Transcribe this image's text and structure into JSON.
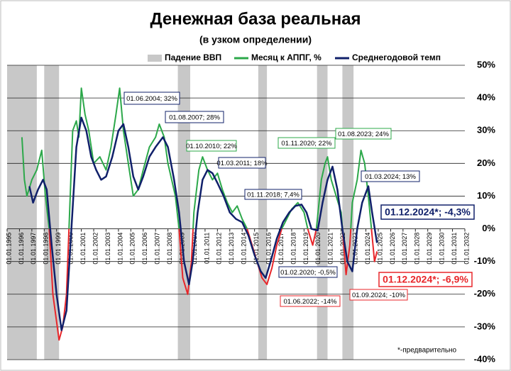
{
  "chart_data": {
    "type": "line",
    "title": "Денежная база реальная",
    "subtitle": "(в узком определении)",
    "footnote": "*-предварительно",
    "xlim": [
      1995,
      2032
    ],
    "ylim": [
      -40,
      50
    ],
    "yticks": [
      {
        "value": 50,
        "label": "50%"
      },
      {
        "value": 40,
        "label": "40%"
      },
      {
        "value": 30,
        "label": "30%"
      },
      {
        "value": 20,
        "label": "20%"
      },
      {
        "value": 10,
        "label": "10%"
      },
      {
        "value": 0,
        "label": "0%"
      },
      {
        "value": -10,
        "label": "-10%"
      },
      {
        "value": -20,
        "label": "-20%"
      },
      {
        "value": -30,
        "label": "-30%"
      },
      {
        "value": -40,
        "label": "-40%"
      }
    ],
    "xticks": [
      {
        "value": 1995,
        "label": "01.01.1995"
      },
      {
        "value": 1996,
        "label": "01.01.1996"
      },
      {
        "value": 1997,
        "label": "01.01.1997"
      },
      {
        "value": 1998,
        "label": "01.01.1998"
      },
      {
        "value": 1999,
        "label": "01.01.1999"
      },
      {
        "value": 2000,
        "label": "01.01.2000"
      },
      {
        "value": 2001,
        "label": "01.01.2001"
      },
      {
        "value": 2002,
        "label": "01.01.2002"
      },
      {
        "value": 2003,
        "label": "01.01.2003"
      },
      {
        "value": 2004,
        "label": "01.01.2004"
      },
      {
        "value": 2005,
        "label": "01.01.2005"
      },
      {
        "value": 2006,
        "label": "01.01.2006"
      },
      {
        "value": 2007,
        "label": "01.01.2007"
      },
      {
        "value": 2008,
        "label": "01.01.2008"
      },
      {
        "value": 2009,
        "label": "01.01.2009"
      },
      {
        "value": 2010,
        "label": "01.01.2010"
      },
      {
        "value": 2011,
        "label": "01.01.2011"
      },
      {
        "value": 2012,
        "label": "01.01.2012"
      },
      {
        "value": 2013,
        "label": "01.01.2013"
      },
      {
        "value": 2014,
        "label": "01.01.2014"
      },
      {
        "value": 2015,
        "label": "01.01.2015"
      },
      {
        "value": 2016,
        "label": "01.01.2016"
      },
      {
        "value": 2017,
        "label": "01.01.2017"
      },
      {
        "value": 2018,
        "label": "01.01.2018"
      },
      {
        "value": 2019,
        "label": "01.01.2019"
      },
      {
        "value": 2020,
        "label": "01.01.2020"
      },
      {
        "value": 2021,
        "label": "01.01.2021"
      },
      {
        "value": 2022,
        "label": "01.01.2022"
      },
      {
        "value": 2023,
        "label": "01.01.2023"
      },
      {
        "value": 2024,
        "label": "01.01.2024"
      },
      {
        "value": 2025,
        "label": "01.01.2025"
      },
      {
        "value": 2026,
        "label": "01.01.2026"
      },
      {
        "value": 2027,
        "label": "01.01.2027"
      },
      {
        "value": 2028,
        "label": "01.01.2028"
      },
      {
        "value": 2029,
        "label": "01.01.2029"
      },
      {
        "value": 2030,
        "label": "01.01.2030"
      },
      {
        "value": 2031,
        "label": "01.01.2031"
      },
      {
        "value": 2032,
        "label": "01.01.2032"
      }
    ],
    "grid": true,
    "recessions": {
      "name": "Падение ВВП",
      "color": "#c8c8c8",
      "periods": [
        [
          1995,
          1997.4
        ],
        [
          1998,
          1999.2
        ],
        [
          2008.8,
          2009.8
        ],
        [
          2015.3,
          2016
        ],
        [
          2020.05,
          2020.9
        ],
        [
          2022.1,
          2023
        ]
      ]
    },
    "series": [
      {
        "name": "Месяц к АППГ, %",
        "color": "#2ca84a",
        "negative_color": "#e8262a",
        "x": [
          1996.2,
          1996.4,
          1996.6,
          1997,
          1997.4,
          1997.8,
          1998.1,
          1998.4,
          1998.7,
          1999.2,
          1999.5,
          1999.8,
          2000,
          2000.3,
          2000.6,
          2000.8,
          2001,
          2001.3,
          2001.6,
          2002,
          2002.5,
          2003,
          2003.4,
          2003.8,
          2004.1,
          2004.4,
          2004.8,
          2005.2,
          2005.6,
          2006,
          2006.5,
          2007,
          2007.3,
          2007.7,
          2008,
          2008.3,
          2008.6,
          2008.9,
          2009.2,
          2009.6,
          2009.9,
          2010.1,
          2010.5,
          2010.8,
          2011.2,
          2011.6,
          2012,
          2012.4,
          2012.8,
          2013.2,
          2013.6,
          2014,
          2014.4,
          2014.8,
          2015.2,
          2015.6,
          2016,
          2016.4,
          2016.8,
          2017.2,
          2017.6,
          2018,
          2018.5,
          2019,
          2019.3,
          2019.7,
          2020,
          2020.4,
          2020.7,
          2020.9,
          2021.2,
          2021.6,
          2022,
          2022.4,
          2022.7,
          2022.9,
          2023.3,
          2023.6,
          2023.9,
          2024.2,
          2024.7,
          2024.9
        ],
        "values": [
          28,
          15,
          10,
          15,
          18,
          24,
          10,
          0,
          -20,
          -34,
          -30,
          -20,
          0,
          30,
          33,
          28,
          43,
          35,
          30,
          20,
          22,
          18,
          25,
          35,
          43,
          30,
          20,
          10,
          12,
          18,
          25,
          28,
          32,
          28,
          20,
          15,
          10,
          0,
          -15,
          -20,
          -10,
          5,
          18,
          22,
          18,
          15,
          17,
          12,
          8,
          5,
          7,
          3,
          0,
          -5,
          -10,
          -15,
          -17,
          -12,
          -5,
          0,
          3,
          6,
          8,
          5,
          0,
          -5,
          0,
          15,
          20,
          22,
          15,
          10,
          5,
          -14,
          -5,
          8,
          15,
          24,
          20,
          10,
          -10,
          -6.9
        ]
      },
      {
        "name": "Среднегодовой темп",
        "color": "#10206a",
        "x": [
          1996.8,
          1997.1,
          1997.5,
          1997.9,
          1998.2,
          1998.6,
          1999,
          1999.4,
          1999.8,
          2000.2,
          2000.6,
          2001,
          2001.4,
          2001.8,
          2002.2,
          2002.6,
          2003,
          2003.5,
          2004,
          2004.4,
          2004.8,
          2005.2,
          2005.6,
          2006,
          2006.5,
          2007,
          2007.6,
          2008,
          2008.5,
          2008.9,
          2009.3,
          2009.7,
          2010,
          2010.4,
          2010.8,
          2011.2,
          2011.6,
          2012,
          2012.5,
          2013,
          2013.5,
          2014,
          2014.5,
          2015,
          2015.5,
          2015.9,
          2016.3,
          2016.8,
          2017.3,
          2017.8,
          2018.3,
          2018.8,
          2019.2,
          2019.6,
          2020.1,
          2020.5,
          2020.9,
          2021.3,
          2021.7,
          2022.1,
          2022.5,
          2022.9,
          2023.3,
          2023.7,
          2024.2,
          2024.5,
          2024.9
        ],
        "values": [
          13,
          8,
          12,
          15,
          12,
          -5,
          -20,
          -31,
          -25,
          0,
          25,
          34,
          30,
          22,
          18,
          15,
          16,
          22,
          30,
          32,
          25,
          16,
          12,
          16,
          22,
          25,
          28,
          25,
          15,
          5,
          -10,
          -17,
          -10,
          5,
          15,
          18,
          17,
          14,
          10,
          5,
          3,
          2,
          -2,
          -8,
          -13,
          -15,
          -10,
          -3,
          2,
          5,
          7,
          7.4,
          5,
          0,
          -0.5,
          8,
          15,
          19,
          12,
          0,
          -10,
          -13,
          0,
          8,
          13,
          5,
          -4.3
        ]
      }
    ],
    "annotations": [
      {
        "text": "01.06.2004; 32%",
        "color": "#10206a"
      },
      {
        "text": "01.08.2007; 28%",
        "color": "#10206a"
      },
      {
        "text": "01.10.2010; 22%",
        "color": "#2ca84a"
      },
      {
        "text": "01.03.2011; 18%",
        "color": "#10206a"
      },
      {
        "text": "01.11.2018; 7,4%",
        "color": "#10206a"
      },
      {
        "text": "01.11.2020; 22%",
        "color": "#2ca84a"
      },
      {
        "text": "01.08.2023; 24%",
        "color": "#2ca84a"
      },
      {
        "text": "01.03.2024; 13%",
        "color": "#10206a"
      },
      {
        "text": "01.12.2024*; -4,3%",
        "color": "#10206a"
      },
      {
        "text": "01.02.2020; -0,5%",
        "color": "#10206a"
      },
      {
        "text": "01.06.2022; -14%",
        "color": "#e8262a"
      },
      {
        "text": "01.09.2024; -10%",
        "color": "#e8262a"
      },
      {
        "text": "01.12.2024*; -6,9%",
        "color": "#e8262a"
      }
    ]
  }
}
